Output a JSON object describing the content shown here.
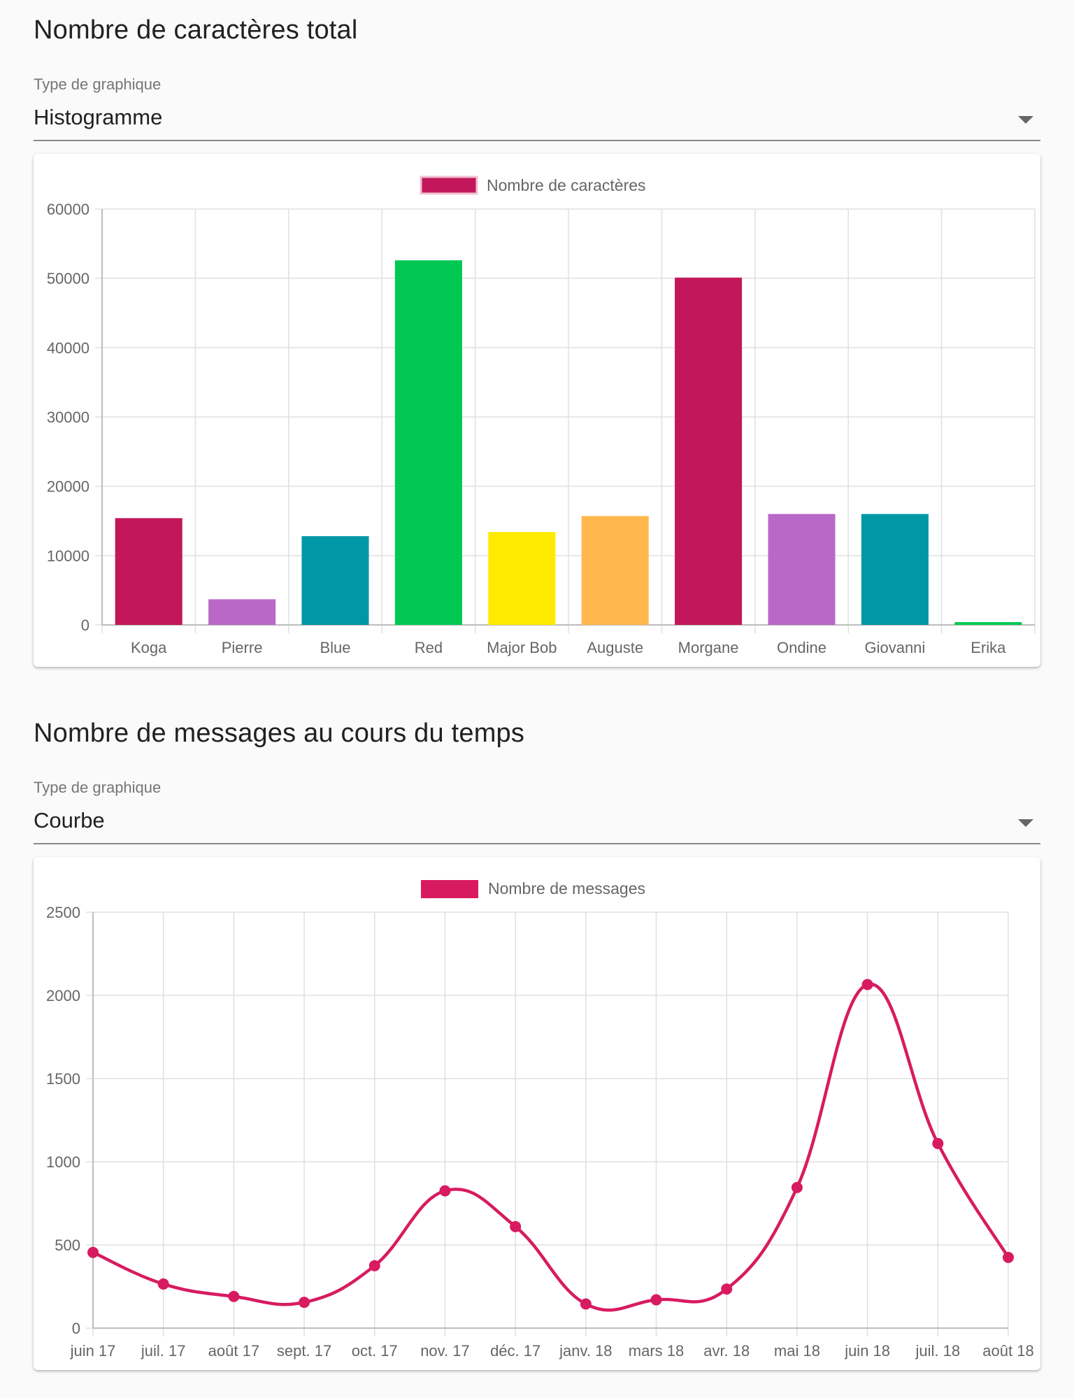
{
  "sections": [
    {
      "title": "Nombre de caractères total",
      "select_label": "Type de graphique",
      "select_value": "Histogramme"
    },
    {
      "title": "Nombre de messages au cours du temps",
      "select_label": "Type de graphique",
      "select_value": "Courbe"
    }
  ],
  "chart_data": [
    {
      "type": "bar",
      "legend_position": "top",
      "grid": true,
      "categories": [
        "Koga",
        "Pierre",
        "Blue",
        "Red",
        "Major Bob",
        "Auguste",
        "Morgane",
        "Ondine",
        "Giovanni",
        "Erika"
      ],
      "series": [
        {
          "name": "Nombre de caractères",
          "values": [
            15400,
            3700,
            12800,
            52600,
            13400,
            15700,
            50100,
            16000,
            16000,
            400
          ],
          "colors": [
            "#c2185b",
            "#ba68c8",
            "#0097a7",
            "#00c853",
            "#ffeb00",
            "#ffb74d",
            "#c2185b",
            "#ba68c8",
            "#0097a7",
            "#00c853"
          ]
        }
      ],
      "ylim": [
        0,
        60000
      ],
      "yticks": [
        "0",
        "10000",
        "20000",
        "30000",
        "40000",
        "50000",
        "60000"
      ]
    },
    {
      "type": "line",
      "legend_position": "top",
      "grid": true,
      "smooth": true,
      "x": [
        "juin 17",
        "juil. 17",
        "août 17",
        "sept. 17",
        "oct. 17",
        "nov. 17",
        "déc. 17",
        "janv. 18",
        "mars 18",
        "avr. 18",
        "mai 18",
        "juin 18",
        "juil. 18",
        "août 18"
      ],
      "series": [
        {
          "name": "Nombre de messages",
          "values": [
            455,
            265,
            190,
            155,
            375,
            825,
            610,
            145,
            170,
            235,
            845,
            2065,
            1110,
            425
          ],
          "color": "#d81b60"
        }
      ],
      "ylim": [
        0,
        2500
      ],
      "yticks": [
        "0",
        "500",
        "1000",
        "1500",
        "2000",
        "2500"
      ]
    }
  ]
}
